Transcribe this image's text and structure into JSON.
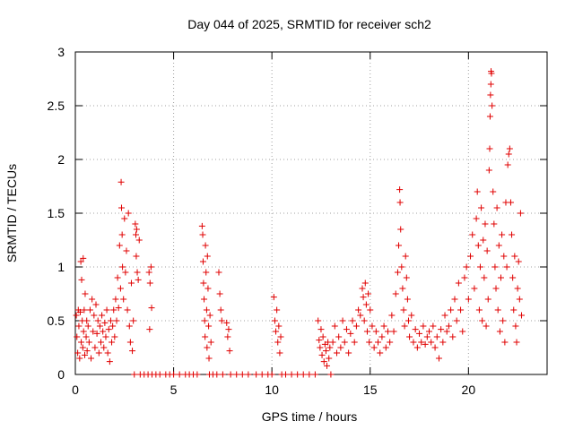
{
  "chart_data": {
    "type": "scatter",
    "title": "Day 044 of 2025, SRMTID for receiver sch2",
    "xlabel": "GPS time / hours",
    "ylabel": "SRMTID / TECUs",
    "xlim": [
      0,
      24
    ],
    "ylim": [
      0,
      3
    ],
    "xticks": [
      0,
      5,
      10,
      15,
      20
    ],
    "yticks": [
      0,
      0.5,
      1,
      1.5,
      2,
      2.5,
      3
    ],
    "xtick_labels": [
      "0",
      "5",
      "10",
      "15",
      "20"
    ],
    "ytick_labels": [
      "0",
      "0.5",
      "1",
      "1.5",
      "2",
      "2.5",
      "3"
    ],
    "grid": true,
    "legend": "none",
    "marker": "plus",
    "series": [
      {
        "name": "sch2",
        "color": "#e00000",
        "points": [
          [
            0.05,
            0.55
          ],
          [
            0.08,
            0.35
          ],
          [
            0.12,
            0.2
          ],
          [
            0.15,
            0.6
          ],
          [
            0.18,
            0.45
          ],
          [
            0.22,
            0.15
          ],
          [
            0.25,
            0.58
          ],
          [
            0.28,
            1.05
          ],
          [
            0.3,
            0.3
          ],
          [
            0.32,
            0.88
          ],
          [
            0.35,
            0.5
          ],
          [
            0.38,
            0.25
          ],
          [
            0.4,
            1.08
          ],
          [
            0.42,
            0.4
          ],
          [
            0.45,
            0.6
          ],
          [
            0.48,
            0.18
          ],
          [
            0.5,
            0.75
          ],
          [
            0.55,
            0.35
          ],
          [
            0.58,
            0.5
          ],
          [
            0.6,
            0.22
          ],
          [
            0.65,
            0.45
          ],
          [
            0.7,
            0.3
          ],
          [
            0.75,
            0.6
          ],
          [
            0.8,
            0.15
          ],
          [
            0.85,
            0.7
          ],
          [
            0.9,
            0.4
          ],
          [
            0.95,
            0.55
          ],
          [
            1.0,
            0.25
          ],
          [
            1.05,
            0.65
          ],
          [
            1.1,
            0.38
          ],
          [
            1.15,
            0.5
          ],
          [
            1.2,
            0.2
          ],
          [
            1.25,
            0.45
          ],
          [
            1.3,
            0.3
          ],
          [
            1.35,
            0.55
          ],
          [
            1.4,
            0.4
          ],
          [
            1.45,
            0.25
          ],
          [
            1.5,
            0.48
          ],
          [
            1.55,
            0.35
          ],
          [
            1.6,
            0.6
          ],
          [
            1.65,
            0.2
          ],
          [
            1.7,
            0.42
          ],
          [
            1.75,
            0.12
          ],
          [
            1.8,
            0.5
          ],
          [
            1.85,
            0.3
          ],
          [
            1.9,
            0.45
          ],
          [
            1.95,
            0.6
          ],
          [
            2.0,
            0.35
          ],
          [
            2.05,
            0.7
          ],
          [
            2.1,
            0.5
          ],
          [
            2.15,
            0.9
          ],
          [
            2.2,
            0.62
          ],
          [
            2.25,
            1.2
          ],
          [
            2.3,
            0.8
          ],
          [
            2.33,
            1.79
          ],
          [
            2.35,
            1.55
          ],
          [
            2.38,
            1.3
          ],
          [
            2.4,
            1.0
          ],
          [
            2.45,
            0.7
          ],
          [
            2.5,
            1.45
          ],
          [
            2.55,
            0.95
          ],
          [
            2.6,
            1.15
          ],
          [
            2.65,
            0.6
          ],
          [
            2.7,
            1.5
          ],
          [
            2.75,
            0.45
          ],
          [
            2.8,
            0.3
          ],
          [
            2.85,
            0.85
          ],
          [
            2.9,
            0.22
          ],
          [
            2.95,
            0.5
          ],
          [
            3.0,
            0.0
          ],
          [
            3.05,
            1.4
          ],
          [
            3.08,
            1.3
          ],
          [
            3.1,
            1.1
          ],
          [
            3.12,
            1.35
          ],
          [
            3.15,
            0.95
          ],
          [
            3.2,
            0.88
          ],
          [
            3.25,
            1.25
          ],
          [
            3.3,
            0.0
          ],
          [
            3.5,
            0.0
          ],
          [
            3.7,
            0.0
          ],
          [
            3.75,
            0.95
          ],
          [
            3.78,
            0.42
          ],
          [
            3.8,
            0.85
          ],
          [
            3.85,
            1.0
          ],
          [
            3.88,
            0.62
          ],
          [
            3.9,
            0.0
          ],
          [
            4.1,
            0.0
          ],
          [
            4.3,
            0.0
          ],
          [
            4.6,
            0.0
          ],
          [
            4.8,
            0.0
          ],
          [
            5.0,
            0.0
          ],
          [
            5.3,
            0.0
          ],
          [
            5.6,
            0.0
          ],
          [
            5.8,
            0.0
          ],
          [
            6.0,
            0.0
          ],
          [
            6.2,
            0.0
          ],
          [
            6.45,
            1.38
          ],
          [
            6.48,
            1.3
          ],
          [
            6.5,
            1.05
          ],
          [
            6.52,
            0.85
          ],
          [
            6.55,
            0.7
          ],
          [
            6.58,
            0.5
          ],
          [
            6.6,
            0.35
          ],
          [
            6.62,
            1.2
          ],
          [
            6.65,
            0.95
          ],
          [
            6.68,
            0.6
          ],
          [
            6.7,
            0.25
          ],
          [
            6.72,
            1.1
          ],
          [
            6.75,
            0.8
          ],
          [
            6.78,
            0.45
          ],
          [
            6.8,
            0.15
          ],
          [
            6.82,
            0.0
          ],
          [
            6.85,
            0.55
          ],
          [
            6.9,
            0.3
          ],
          [
            7.0,
            0.0
          ],
          [
            7.2,
            0.0
          ],
          [
            7.3,
            0.95
          ],
          [
            7.35,
            0.75
          ],
          [
            7.4,
            0.6
          ],
          [
            7.45,
            0.5
          ],
          [
            7.5,
            0.0
          ],
          [
            7.7,
            0.48
          ],
          [
            7.75,
            0.35
          ],
          [
            7.8,
            0.42
          ],
          [
            7.85,
            0.22
          ],
          [
            7.9,
            0.0
          ],
          [
            8.2,
            0.0
          ],
          [
            8.5,
            0.0
          ],
          [
            8.8,
            0.0
          ],
          [
            9.2,
            0.0
          ],
          [
            9.5,
            0.0
          ],
          [
            9.8,
            0.0
          ],
          [
            10.0,
            0.0
          ],
          [
            10.1,
            0.72
          ],
          [
            10.15,
            0.5
          ],
          [
            10.2,
            0.4
          ],
          [
            10.25,
            0.6
          ],
          [
            10.3,
            0.3
          ],
          [
            10.35,
            0.45
          ],
          [
            10.4,
            0.2
          ],
          [
            10.45,
            0.35
          ],
          [
            10.5,
            0.0
          ],
          [
            10.7,
            0.0
          ],
          [
            11.0,
            0.0
          ],
          [
            11.3,
            0.0
          ],
          [
            11.6,
            0.0
          ],
          [
            11.9,
            0.0
          ],
          [
            12.2,
            0.0
          ],
          [
            12.35,
            0.5
          ],
          [
            12.4,
            0.32
          ],
          [
            12.45,
            0.25
          ],
          [
            12.5,
            0.42
          ],
          [
            12.55,
            0.18
          ],
          [
            12.6,
            0.35
          ],
          [
            12.65,
            0.12
          ],
          [
            12.7,
            0.28
          ],
          [
            12.75,
            0.22
          ],
          [
            12.8,
            0.08
          ],
          [
            12.85,
            0.3
          ],
          [
            12.9,
            0.15
          ],
          [
            12.95,
            0.25
          ],
          [
            13.0,
            0.0
          ],
          [
            13.1,
            0.3
          ],
          [
            13.2,
            0.45
          ],
          [
            13.3,
            0.2
          ],
          [
            13.4,
            0.35
          ],
          [
            13.5,
            0.25
          ],
          [
            13.6,
            0.5
          ],
          [
            13.7,
            0.3
          ],
          [
            13.8,
            0.42
          ],
          [
            13.9,
            0.2
          ],
          [
            14.0,
            0.38
          ],
          [
            14.1,
            0.5
          ],
          [
            14.2,
            0.3
          ],
          [
            14.3,
            0.45
          ],
          [
            14.4,
            0.6
          ],
          [
            14.5,
            0.55
          ],
          [
            14.6,
            0.8
          ],
          [
            14.65,
            0.72
          ],
          [
            14.7,
            0.5
          ],
          [
            14.75,
            0.85
          ],
          [
            14.8,
            0.65
          ],
          [
            14.85,
            0.4
          ],
          [
            14.9,
            0.75
          ],
          [
            14.95,
            0.3
          ],
          [
            15.0,
            0.6
          ],
          [
            15.1,
            0.45
          ],
          [
            15.2,
            0.25
          ],
          [
            15.3,
            0.4
          ],
          [
            15.4,
            0.3
          ],
          [
            15.5,
            0.2
          ],
          [
            15.6,
            0.35
          ],
          [
            15.7,
            0.45
          ],
          [
            15.8,
            0.25
          ],
          [
            15.9,
            0.4
          ],
          [
            16.0,
            0.3
          ],
          [
            16.1,
            0.55
          ],
          [
            16.2,
            0.4
          ],
          [
            16.3,
            0.75
          ],
          [
            16.4,
            0.95
          ],
          [
            16.45,
            1.2
          ],
          [
            16.5,
            1.72
          ],
          [
            16.52,
            1.6
          ],
          [
            16.55,
            1.35
          ],
          [
            16.6,
            1.0
          ],
          [
            16.65,
            0.8
          ],
          [
            16.7,
            0.6
          ],
          [
            16.75,
            0.45
          ],
          [
            16.8,
            1.1
          ],
          [
            16.85,
            0.9
          ],
          [
            16.9,
            0.7
          ],
          [
            16.95,
            0.5
          ],
          [
            17.0,
            0.35
          ],
          [
            17.1,
            0.55
          ],
          [
            17.2,
            0.3
          ],
          [
            17.3,
            0.42
          ],
          [
            17.4,
            0.25
          ],
          [
            17.5,
            0.38
          ],
          [
            17.6,
            0.3
          ],
          [
            17.7,
            0.45
          ],
          [
            17.8,
            0.28
          ],
          [
            17.9,
            0.35
          ],
          [
            18.0,
            0.4
          ],
          [
            18.1,
            0.3
          ],
          [
            18.2,
            0.45
          ],
          [
            18.3,
            0.25
          ],
          [
            18.4,
            0.35
          ],
          [
            18.5,
            0.15
          ],
          [
            18.6,
            0.42
          ],
          [
            18.7,
            0.3
          ],
          [
            18.8,
            0.55
          ],
          [
            18.9,
            0.4
          ],
          [
            19.0,
            0.45
          ],
          [
            19.1,
            0.6
          ],
          [
            19.2,
            0.35
          ],
          [
            19.3,
            0.7
          ],
          [
            19.4,
            0.5
          ],
          [
            19.5,
            0.85
          ],
          [
            19.6,
            0.6
          ],
          [
            19.7,
            0.4
          ],
          [
            19.8,
            0.9
          ],
          [
            19.9,
            1.0
          ],
          [
            20.0,
            0.7
          ],
          [
            20.1,
            1.1
          ],
          [
            20.2,
            1.3
          ],
          [
            20.3,
            0.8
          ],
          [
            20.4,
            1.45
          ],
          [
            20.45,
            1.7
          ],
          [
            20.5,
            1.2
          ],
          [
            20.55,
            0.6
          ],
          [
            20.6,
            1.0
          ],
          [
            20.65,
            1.55
          ],
          [
            20.7,
            0.5
          ],
          [
            20.75,
            1.25
          ],
          [
            20.8,
            0.9
          ],
          [
            20.85,
            1.4
          ],
          [
            20.9,
            0.45
          ],
          [
            20.95,
            1.15
          ],
          [
            21.0,
            0.7
          ],
          [
            21.05,
            1.9
          ],
          [
            21.08,
            2.1
          ],
          [
            21.1,
            2.4
          ],
          [
            21.12,
            2.6
          ],
          [
            21.14,
            2.7
          ],
          [
            21.15,
            2.82
          ],
          [
            21.17,
            2.8
          ],
          [
            21.2,
            2.5
          ],
          [
            21.25,
            1.7
          ],
          [
            21.3,
            1.4
          ],
          [
            21.35,
            1.0
          ],
          [
            21.4,
            0.8
          ],
          [
            21.45,
            1.55
          ],
          [
            21.5,
            0.6
          ],
          [
            21.55,
            1.2
          ],
          [
            21.6,
            0.4
          ],
          [
            21.65,
            0.9
          ],
          [
            21.7,
            1.3
          ],
          [
            21.75,
            0.5
          ],
          [
            21.8,
            1.1
          ],
          [
            21.85,
            0.3
          ],
          [
            21.9,
            1.6
          ],
          [
            21.95,
            1.0
          ],
          [
            22.0,
            1.95
          ],
          [
            22.05,
            2.05
          ],
          [
            22.1,
            2.1
          ],
          [
            22.15,
            1.6
          ],
          [
            22.2,
            1.3
          ],
          [
            22.25,
            0.9
          ],
          [
            22.3,
            0.6
          ],
          [
            22.35,
            1.1
          ],
          [
            22.4,
            0.45
          ],
          [
            22.45,
            0.3
          ],
          [
            22.5,
            0.8
          ],
          [
            22.55,
            1.05
          ],
          [
            22.6,
            0.7
          ],
          [
            22.65,
            1.5
          ],
          [
            22.7,
            0.55
          ]
        ]
      }
    ]
  }
}
